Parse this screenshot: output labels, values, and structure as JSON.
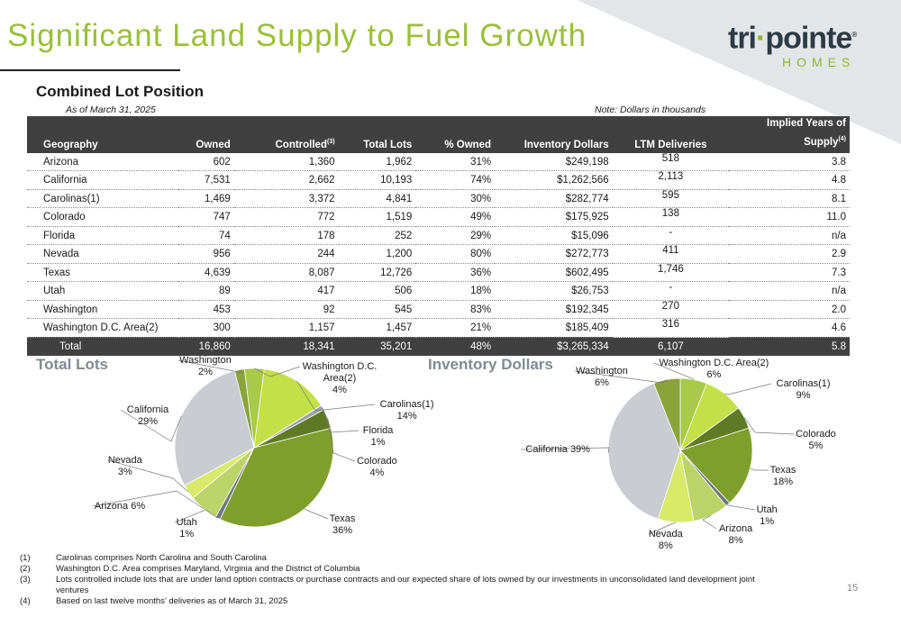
{
  "title": "Significant Land Supply to Fuel Growth",
  "logo": {
    "main_a": "tri",
    "main_b": "pointe",
    "mark": "®",
    "sub": "HOMES"
  },
  "subtitle": "Combined Lot Position",
  "as_of": "As of March 31, 2025",
  "note": "Note:  Dollars in thousands",
  "table": {
    "headers": [
      "Geography",
      "Owned",
      "Controlled",
      "Total Lots",
      "% Owned",
      "Inventory Dollars",
      "LTM Deliveries",
      "Implied Years of",
      "Supply"
    ],
    "header_sup": {
      "controlled": "(3)",
      "supply": "(4)"
    },
    "rows": [
      [
        "Arizona",
        "602",
        "1,360",
        "1,962",
        "31%",
        "$249,198",
        "518",
        "3.8"
      ],
      [
        "California",
        "7,531",
        "2,662",
        "10,193",
        "74%",
        "$1,262,566",
        "2,113",
        "4.8"
      ],
      [
        "Carolinas(1)",
        "1,469",
        "3,372",
        "4,841",
        "30%",
        "$282,774",
        "595",
        "8.1"
      ],
      [
        "Colorado",
        "747",
        "772",
        "1,519",
        "49%",
        "$175,925",
        "138",
        "11.0"
      ],
      [
        "Florida",
        "74",
        "178",
        "252",
        "29%",
        "$15,096",
        "-",
        "n/a"
      ],
      [
        "Nevada",
        "956",
        "244",
        "1,200",
        "80%",
        "$272,773",
        "411",
        "2.9"
      ],
      [
        "Texas",
        "4,639",
        "8,087",
        "12,726",
        "36%",
        "$602,495",
        "1,746",
        "7.3"
      ],
      [
        "Utah",
        "89",
        "417",
        "506",
        "18%",
        "$26,753",
        "-",
        "n/a"
      ],
      [
        "Washington",
        "453",
        "92",
        "545",
        "83%",
        "$192,345",
        "270",
        "2.0"
      ],
      [
        "Washington D.C. Area(2)",
        "300",
        "1,157",
        "1,457",
        "21%",
        "$185,409",
        "316",
        "4.6"
      ]
    ],
    "total": [
      "Total",
      "16,860",
      "18,341",
      "35,201",
      "48%",
      "$3,265,334",
      "6,107",
      "5.8"
    ]
  },
  "chart_data": [
    {
      "type": "pie",
      "title": "Total Lots",
      "slices": [
        {
          "name": "Washington D.C. Area(2)",
          "value": 4,
          "color": "#a9c94a"
        },
        {
          "name": "Carolinas(1)",
          "value": 14,
          "color": "#c4df48"
        },
        {
          "name": "Florida",
          "value": 1,
          "color": "#9aa2a8"
        },
        {
          "name": "Colorado",
          "value": 4,
          "color": "#5f7a25"
        },
        {
          "name": "Texas",
          "value": 36,
          "color": "#7f9f2c"
        },
        {
          "name": "Utah",
          "value": 1,
          "color": "#6f7780"
        },
        {
          "name": "Arizona",
          "value": 6,
          "color": "#bcd36a"
        },
        {
          "name": "Nevada",
          "value": 3,
          "color": "#d8ea6a"
        },
        {
          "name": "California",
          "value": 29,
          "color": "#c9ccd0"
        },
        {
          "name": "Washington",
          "value": 2,
          "color": "#8aa33a"
        }
      ],
      "labels": [
        {
          "lines": [
            "Washington D.C.",
            "Area(2)",
            "4%"
          ]
        },
        {
          "lines": [
            "Carolinas(1)",
            "14%"
          ]
        },
        {
          "lines": [
            "Florida",
            "1%"
          ]
        },
        {
          "lines": [
            "Colorado",
            "4%"
          ]
        },
        {
          "lines": [
            "Texas",
            "36%"
          ]
        },
        {
          "lines": [
            "Utah",
            "1%"
          ]
        },
        {
          "lines": [
            "Arizona 6%"
          ]
        },
        {
          "lines": [
            "Nevada",
            "3%"
          ]
        },
        {
          "lines": [
            "California",
            "29%"
          ]
        },
        {
          "lines": [
            "Washington",
            "2%"
          ]
        }
      ]
    },
    {
      "type": "pie",
      "title": "Inventory Dollars",
      "slices": [
        {
          "name": "Washington D.C. Area(2)",
          "value": 6,
          "color": "#a9c94a"
        },
        {
          "name": "Carolinas(1)",
          "value": 9,
          "color": "#c4df48"
        },
        {
          "name": "Colorado",
          "value": 5,
          "color": "#5f7a25"
        },
        {
          "name": "Texas",
          "value": 18,
          "color": "#7f9f2c"
        },
        {
          "name": "Utah",
          "value": 1,
          "color": "#6f7780"
        },
        {
          "name": "Arizona",
          "value": 8,
          "color": "#bcd36a"
        },
        {
          "name": "Nevada",
          "value": 8,
          "color": "#d8ea6a"
        },
        {
          "name": "California",
          "value": 39,
          "color": "#c9ccd0"
        },
        {
          "name": "Washington",
          "value": 6,
          "color": "#8aa33a"
        }
      ],
      "labels": [
        {
          "lines": [
            "Washington D.C. Area(2)",
            "6%"
          ]
        },
        {
          "lines": [
            "Carolinas(1)",
            "9%"
          ]
        },
        {
          "lines": [
            "Colorado",
            "5%"
          ]
        },
        {
          "lines": [
            "Texas",
            "18%"
          ]
        },
        {
          "lines": [
            "Utah",
            "1%"
          ]
        },
        {
          "lines": [
            "Arizona",
            "8%"
          ]
        },
        {
          "lines": [
            "Nevada",
            "8%"
          ]
        },
        {
          "lines": [
            "California 39%"
          ]
        },
        {
          "lines": [
            "Washington",
            "6%"
          ]
        }
      ]
    }
  ],
  "footnotes": [
    {
      "num": "(1)",
      "text": "Carolinas comprises North Carolina and South Carolina"
    },
    {
      "num": "(2)",
      "text": "Washington D.C. Area comprises Maryland, Virginia and the District of Columbia"
    },
    {
      "num": "(3)",
      "text": "Lots controlled include lots that are under land option contracts or purchase contracts and our expected share of lots owned by our investments in unconsolidated land development joint ventures"
    },
    {
      "num": "(4)",
      "text": "Based on last twelve months’ deliveries as of March 31, 2025"
    }
  ],
  "page_number": "15"
}
